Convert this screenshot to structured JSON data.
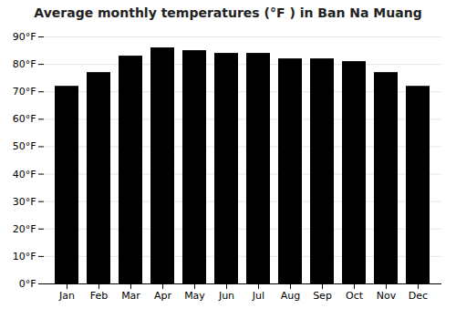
{
  "chart_data": {
    "type": "bar",
    "title": "Average monthly temperatures (°F ) in Ban Na Muang",
    "categories": [
      "Jan",
      "Feb",
      "Mar",
      "Apr",
      "May",
      "Jun",
      "Jul",
      "Aug",
      "Sep",
      "Oct",
      "Nov",
      "Dec"
    ],
    "values": [
      72,
      77,
      83,
      86,
      85,
      84,
      84,
      82,
      82,
      81,
      77,
      72
    ],
    "ylim": [
      0,
      90
    ],
    "yticks": [
      {
        "value": 0,
        "label": "0°F"
      },
      {
        "value": 10,
        "label": "10°F"
      },
      {
        "value": 20,
        "label": "20°F"
      },
      {
        "value": 30,
        "label": "30°F"
      },
      {
        "value": 40,
        "label": "40°F"
      },
      {
        "value": 50,
        "label": "50°F"
      },
      {
        "value": 60,
        "label": "60°F"
      },
      {
        "value": 70,
        "label": "70°F"
      },
      {
        "value": 80,
        "label": "80°F"
      },
      {
        "value": 90,
        "label": "90°F"
      }
    ],
    "grid": true
  }
}
